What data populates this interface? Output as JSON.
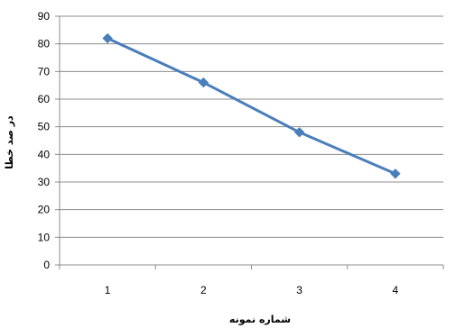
{
  "chart_data": {
    "type": "line",
    "x": [
      1,
      2,
      3,
      4
    ],
    "series": [
      {
        "values": [
          82,
          66,
          48,
          33
        ]
      }
    ],
    "xlabel": "شماره نمونه",
    "ylabel": "در صد خطا",
    "ylim": [
      0,
      90
    ],
    "yticks": [
      0,
      10,
      20,
      30,
      40,
      50,
      60,
      70,
      80,
      90
    ],
    "xticks": [
      "1",
      "2",
      "3",
      "4"
    ],
    "grid": true,
    "line_color": "#4a7ebb",
    "grid_color": "#8c8c8c"
  }
}
